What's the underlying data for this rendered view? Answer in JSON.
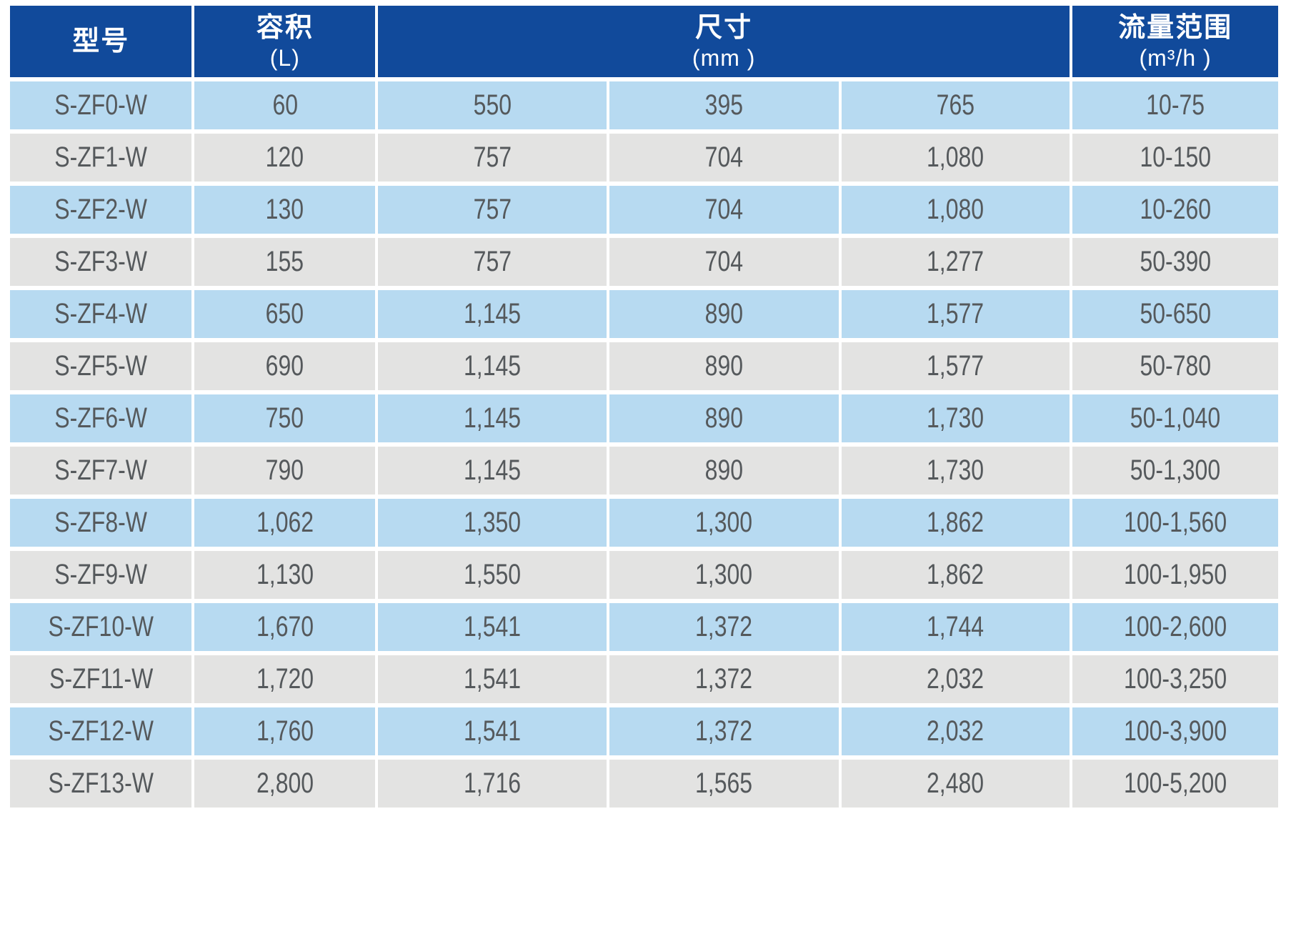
{
  "table": {
    "headers": {
      "model": {
        "title": "型号",
        "unit": ""
      },
      "volume": {
        "title": "容积",
        "unit": "(L)"
      },
      "size": {
        "title": "尺寸",
        "unit": "(mm )"
      },
      "flow": {
        "title": "流量范围",
        "unit": "(m³/h )"
      }
    },
    "rows": [
      {
        "model": "S-ZF0-W",
        "volume": "60",
        "size1": "550",
        "size2": "395",
        "size3": "765",
        "flow": "10-75"
      },
      {
        "model": "S-ZF1-W",
        "volume": "120",
        "size1": "757",
        "size2": "704",
        "size3": "1,080",
        "flow": "10-150"
      },
      {
        "model": "S-ZF2-W",
        "volume": "130",
        "size1": "757",
        "size2": "704",
        "size3": "1,080",
        "flow": "10-260"
      },
      {
        "model": "S-ZF3-W",
        "volume": "155",
        "size1": "757",
        "size2": "704",
        "size3": "1,277",
        "flow": "50-390"
      },
      {
        "model": "S-ZF4-W",
        "volume": "650",
        "size1": "1,145",
        "size2": "890",
        "size3": "1,577",
        "flow": "50-650"
      },
      {
        "model": "S-ZF5-W",
        "volume": "690",
        "size1": "1,145",
        "size2": "890",
        "size3": "1,577",
        "flow": "50-780"
      },
      {
        "model": "S-ZF6-W",
        "volume": "750",
        "size1": "1,145",
        "size2": "890",
        "size3": "1,730",
        "flow": "50-1,040"
      },
      {
        "model": "S-ZF7-W",
        "volume": "790",
        "size1": "1,145",
        "size2": "890",
        "size3": "1,730",
        "flow": "50-1,300"
      },
      {
        "model": "S-ZF8-W",
        "volume": "1,062",
        "size1": "1,350",
        "size2": "1,300",
        "size3": "1,862",
        "flow": "100-1,560"
      },
      {
        "model": "S-ZF9-W",
        "volume": "1,130",
        "size1": "1,550",
        "size2": "1,300",
        "size3": "1,862",
        "flow": "100-1,950"
      },
      {
        "model": "S-ZF10-W",
        "volume": "1,670",
        "size1": "1,541",
        "size2": "1,372",
        "size3": "1,744",
        "flow": "100-2,600"
      },
      {
        "model": "S-ZF11-W",
        "volume": "1,720",
        "size1": "1,541",
        "size2": "1,372",
        "size3": "2,032",
        "flow": "100-3,250"
      },
      {
        "model": "S-ZF12-W",
        "volume": "1,760",
        "size1": "1,541",
        "size2": "1,372",
        "size3": "2,032",
        "flow": "100-3,900"
      },
      {
        "model": "S-ZF13-W",
        "volume": "2,800",
        "size1": "1,716",
        "size2": "1,565",
        "size3": "2,480",
        "flow": "100-5,200"
      }
    ]
  },
  "colors": {
    "header_bg": "#114A9B",
    "header_text": "#FFFFFF",
    "row_blue": "#B7DAF1",
    "row_gray": "#E3E3E2",
    "cell_text": "#55595C"
  }
}
